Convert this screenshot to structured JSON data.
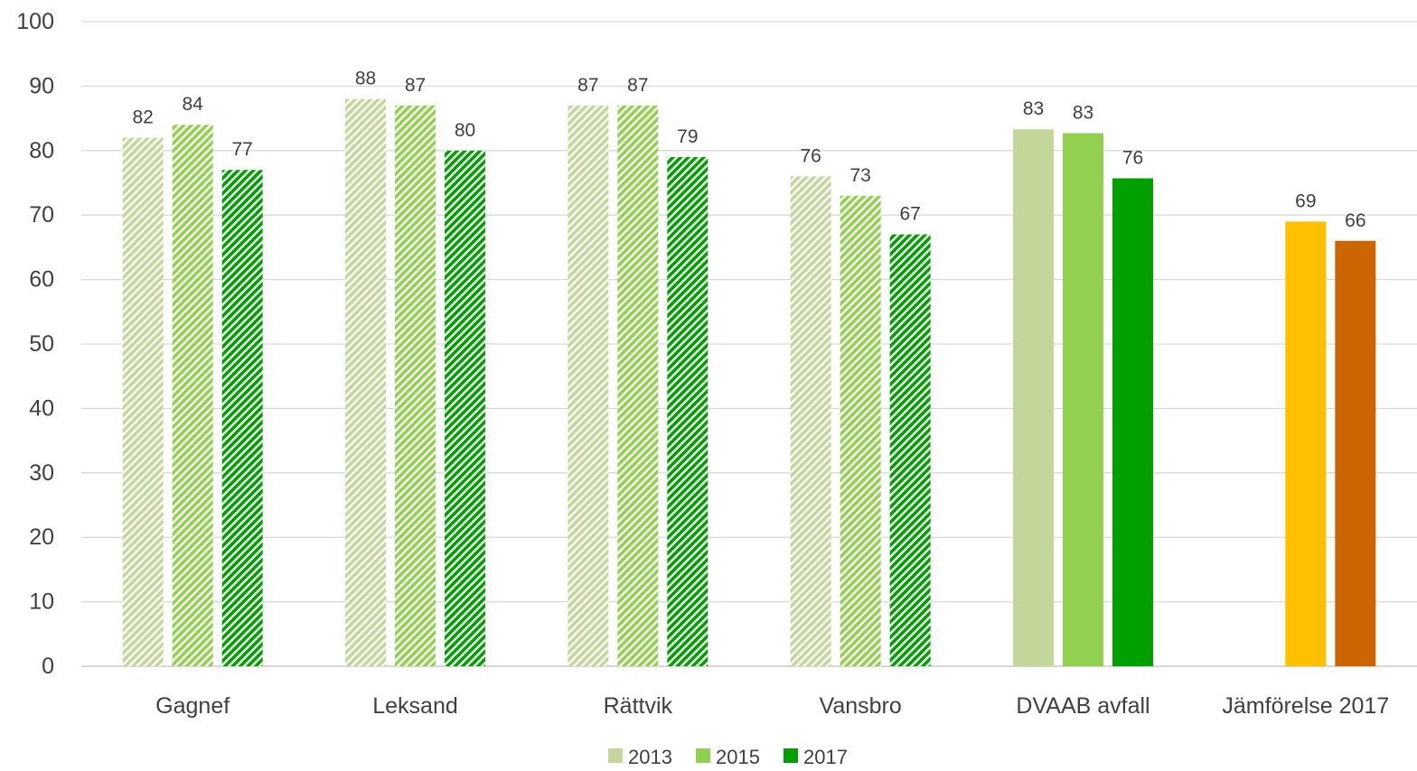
{
  "chart_data": {
    "type": "bar",
    "title": "",
    "xlabel": "",
    "ylabel": "",
    "ylim": [
      0,
      100
    ],
    "yticks": [
      0,
      10,
      20,
      30,
      40,
      50,
      60,
      70,
      80,
      90,
      100
    ],
    "grid": true,
    "legend_position": "bottom-center",
    "categories": [
      "Gagnef",
      "Leksand",
      "Rättvik",
      "Vansbro",
      "DVAAB avfall",
      "Jämförelse 2017"
    ],
    "series": [
      {
        "name": "2013",
        "values": [
          82,
          88,
          87,
          76,
          83.3,
          null
        ],
        "color": "#c4d79b"
      },
      {
        "name": "2015",
        "values": [
          84,
          87,
          87,
          73,
          82.7,
          69
        ],
        "color": "#92d050"
      },
      {
        "name": "2017",
        "values": [
          77,
          80,
          79,
          67,
          75.7,
          66
        ],
        "color": "#00a000"
      }
    ],
    "data_labels": [
      [
        "82",
        "88",
        "87",
        "76",
        "83",
        ""
      ],
      [
        "84",
        "87",
        "87",
        "73",
        "83",
        "69"
      ],
      [
        "77",
        "80",
        "79",
        "67",
        "76",
        "66"
      ]
    ],
    "bar_styles": [
      "hatched",
      "hatched",
      "hatched",
      "hatched",
      "solid",
      "solid"
    ],
    "comparison_colors": [
      "#ffc000",
      "#cc6600"
    ],
    "legend": [
      {
        "label": "2013",
        "color": "#c4d79b"
      },
      {
        "label": "2015",
        "color": "#92d050"
      },
      {
        "label": "2017",
        "color": "#00a000"
      }
    ]
  }
}
